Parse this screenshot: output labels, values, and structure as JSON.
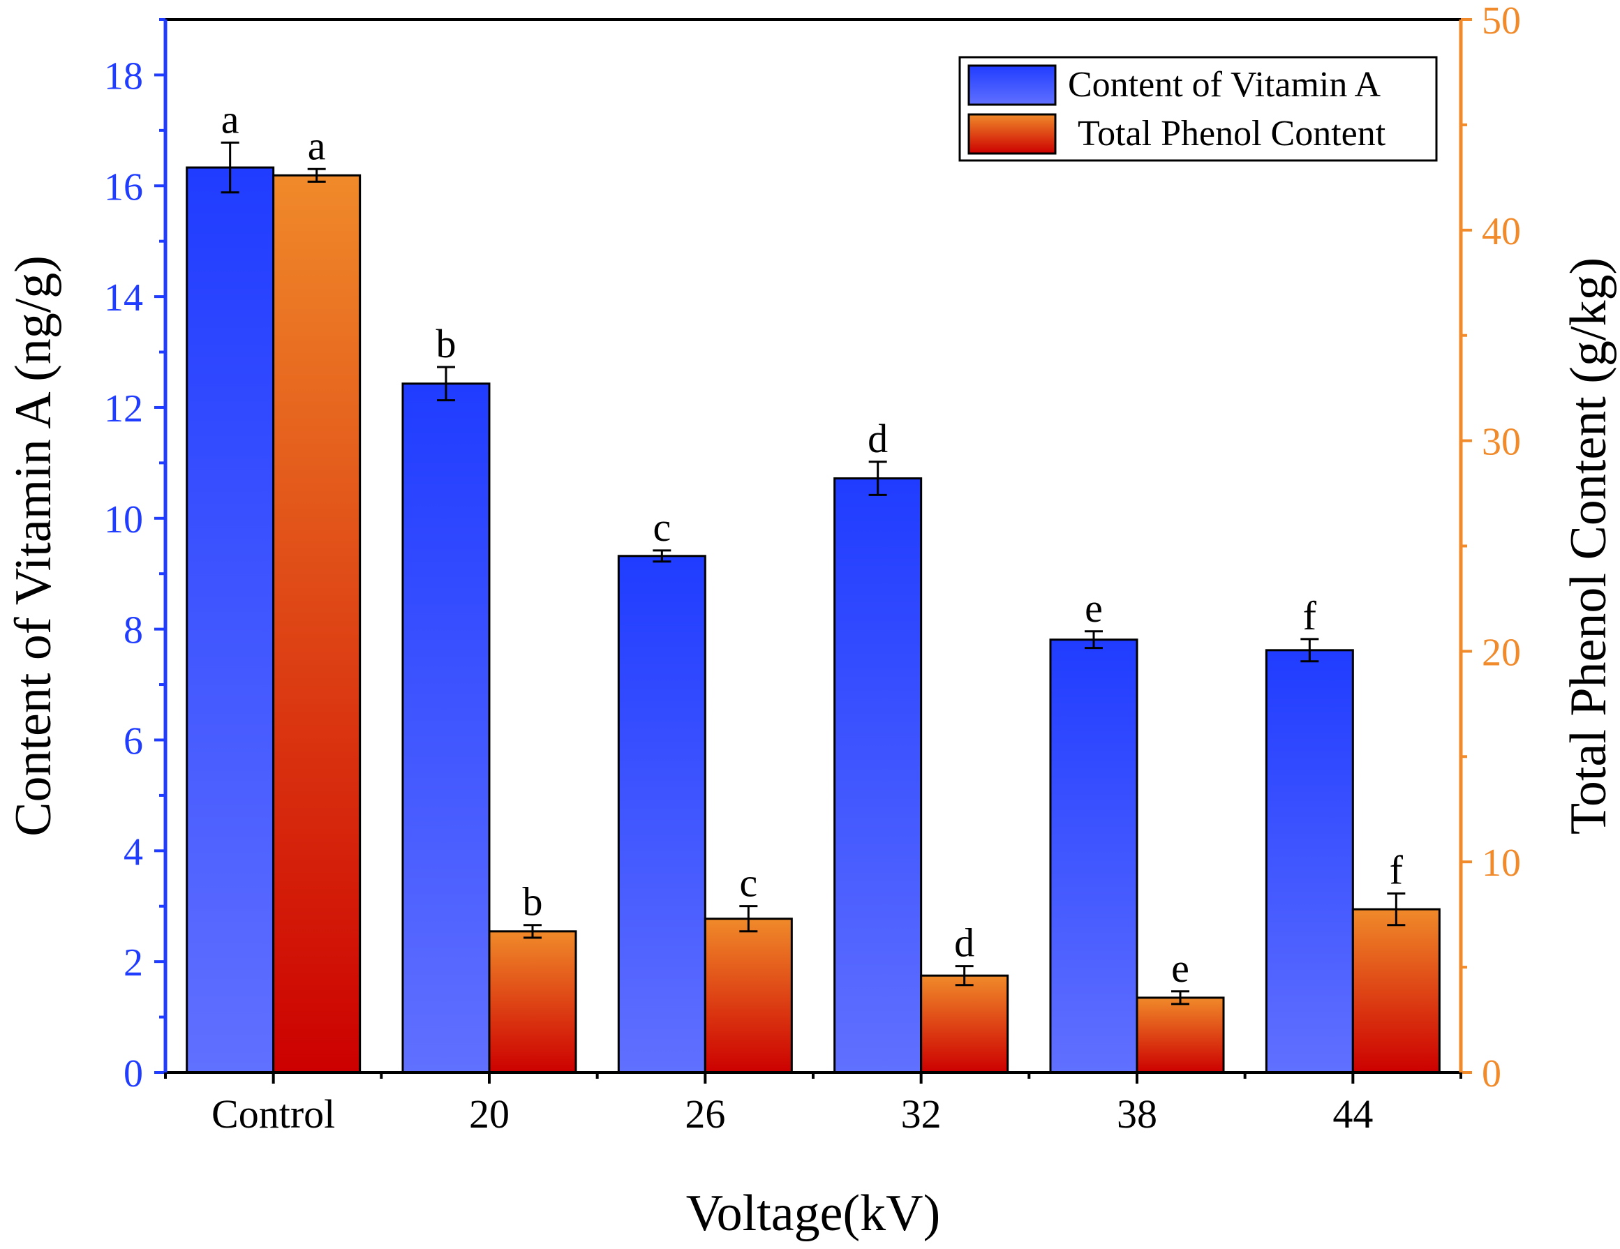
{
  "chart_data": {
    "type": "bar",
    "xlabel": "Voltage(kV)",
    "categories": [
      "Control",
      "20",
      "26",
      "32",
      "38",
      "44"
    ],
    "y_left": {
      "label": "Content of  Vitamin A (ng/g)",
      "lim": [
        0,
        19
      ],
      "ticks": [
        0,
        2,
        4,
        6,
        8,
        10,
        12,
        14,
        16,
        18
      ],
      "color": "#1f3cff"
    },
    "y_right": {
      "label": "Total Phenol Content (g/kg)",
      "lim": [
        0,
        50
      ],
      "ticks": [
        0,
        10,
        20,
        30,
        40,
        50
      ],
      "color": "#f08a2a"
    },
    "legend_position": "top-right",
    "grid": false,
    "series": [
      {
        "name": "Content of  Vitamin A",
        "axis": "left",
        "values": [
          16.33,
          12.43,
          9.32,
          10.72,
          7.81,
          7.62
        ],
        "errors": [
          0.45,
          0.3,
          0.1,
          0.3,
          0.15,
          0.2
        ],
        "letters": [
          "a",
          "b",
          "c",
          "d",
          "e",
          "f"
        ],
        "color_top": "#203cff",
        "color_bottom": "#6070ff"
      },
      {
        "name": "Total Phenol Content",
        "axis": "right",
        "values": [
          42.6,
          6.7,
          7.3,
          4.6,
          3.55,
          7.75
        ],
        "errors": [
          0.3,
          0.3,
          0.6,
          0.45,
          0.3,
          0.75
        ],
        "letters": [
          "a",
          "b",
          "c",
          "d",
          "e",
          "f"
        ],
        "color_top": "#f08a2a",
        "color_bottom": "#cc0000"
      }
    ]
  }
}
